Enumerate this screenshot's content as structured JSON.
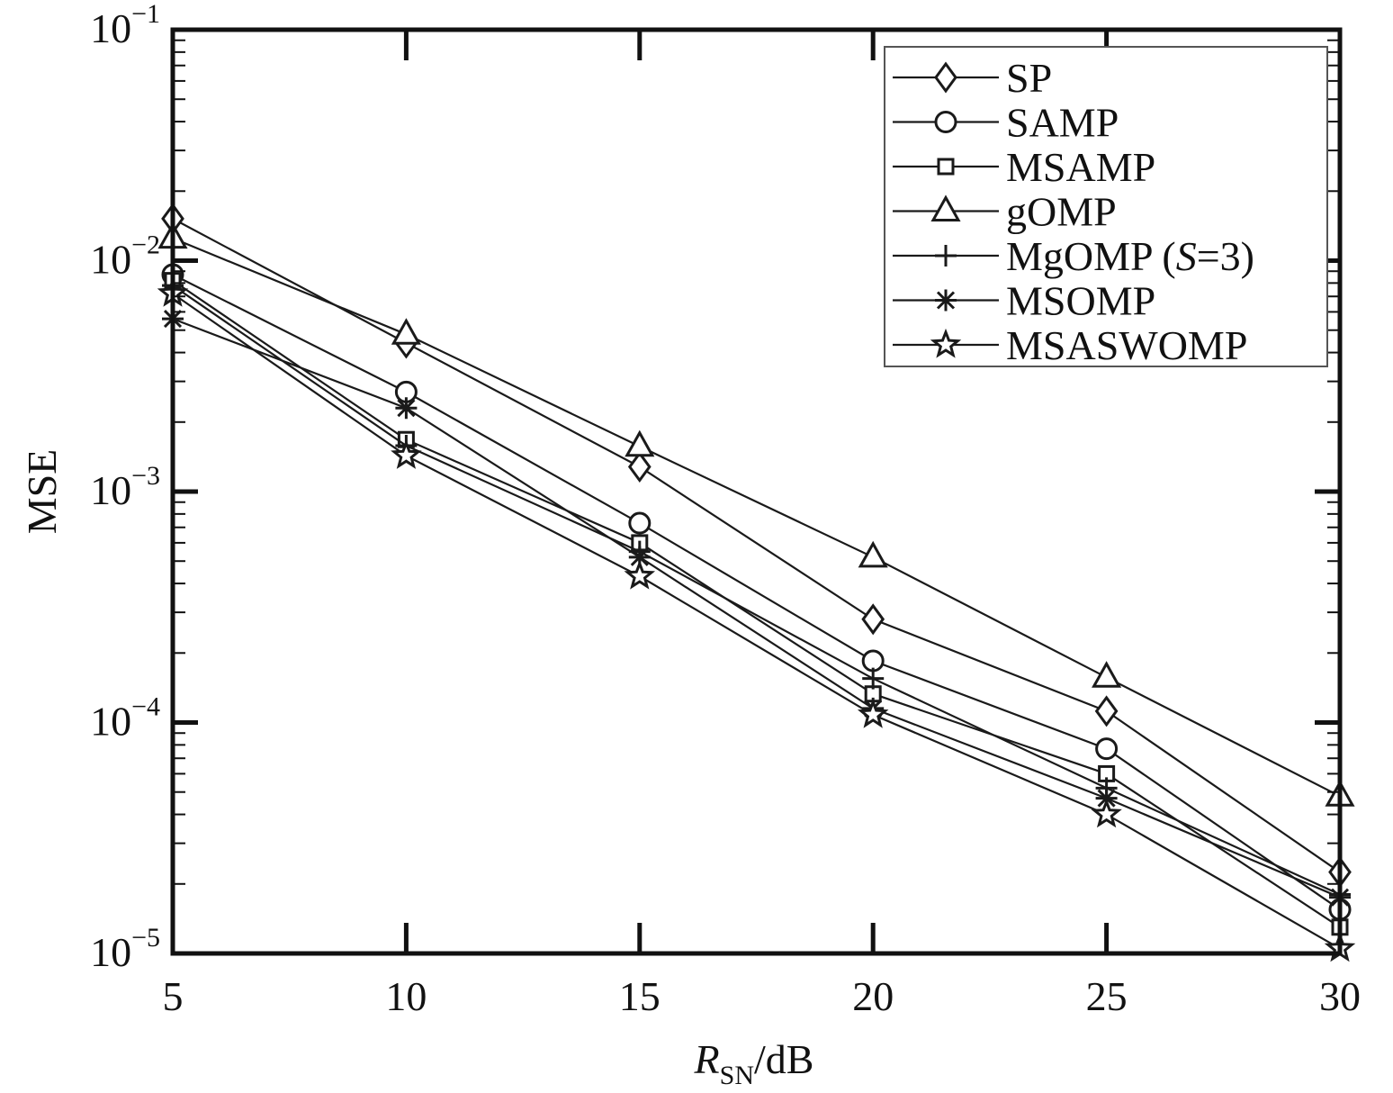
{
  "chart_data": {
    "type": "line",
    "ylabel": "MSE",
    "xlabel_main": "R",
    "xlabel_sub": "SN",
    "xlabel_unit": "/dB",
    "xlim": [
      5,
      30
    ],
    "ylim": [
      1e-05,
      0.1
    ],
    "yscale": "log",
    "x_ticks": [
      {
        "value": 5,
        "label": "5"
      },
      {
        "value": 10,
        "label": "10"
      },
      {
        "value": 15,
        "label": "15"
      },
      {
        "value": 20,
        "label": "20"
      },
      {
        "value": 25,
        "label": "25"
      },
      {
        "value": 30,
        "label": "30"
      }
    ],
    "y_ticks": [
      {
        "value": 1e-05,
        "base": "10",
        "exp": "−5"
      },
      {
        "value": 0.0001,
        "base": "10",
        "exp": "−4"
      },
      {
        "value": 0.001,
        "base": "10",
        "exp": "−3"
      },
      {
        "value": 0.01,
        "base": "10",
        "exp": "−2"
      },
      {
        "value": 0.1,
        "base": "10",
        "exp": "−1"
      }
    ],
    "grid": false,
    "legend_position": "top-right",
    "x": [
      5,
      10,
      15,
      20,
      25,
      30
    ],
    "series": [
      {
        "name": "SP",
        "marker": "diamond",
        "values": [
          0.0152,
          0.0044,
          0.00128,
          0.00028,
          0.000112,
          2.25e-05
        ]
      },
      {
        "name": "SAMP",
        "marker": "circle",
        "values": [
          0.0087,
          0.0027,
          0.00073,
          0.000185,
          7.7e-05,
          1.55e-05
        ]
      },
      {
        "name": "MSAMP",
        "marker": "square",
        "values": [
          0.0082,
          0.00168,
          0.0006,
          0.000133,
          6e-05,
          1.3e-05
        ]
      },
      {
        "name": "gOMP",
        "marker": "triangle",
        "values": [
          0.0125,
          0.0048,
          0.00157,
          0.00052,
          0.000157,
          4.8e-05
        ]
      },
      {
        "name": "MgOMP (S=3)",
        "marker": "plus",
        "values": [
          0.0078,
          0.00158,
          0.00055,
          0.000155,
          5.2e-05,
          1.8e-05
        ]
      },
      {
        "name": "MSOMP",
        "marker": "asterisk",
        "values": [
          0.0056,
          0.0023,
          0.00052,
          0.000115,
          4.7e-05,
          1.75e-05
        ]
      },
      {
        "name": "MSASWOMP",
        "marker": "star",
        "values": [
          0.0072,
          0.00143,
          0.00043,
          0.000108,
          4e-05,
          1.05e-05
        ]
      }
    ],
    "legend": [
      {
        "label": "SP",
        "marker": "diamond"
      },
      {
        "label": "SAMP",
        "marker": "circle"
      },
      {
        "label": "MSAMP",
        "marker": "square"
      },
      {
        "label": "gOMP",
        "marker": "triangle"
      },
      {
        "label_prefix": "MgOMP (",
        "label_italic": "S",
        "label_suffix": "=3)",
        "marker": "plus"
      },
      {
        "label": "MSOMP",
        "marker": "asterisk"
      },
      {
        "label": "MSASWOMP",
        "marker": "star"
      }
    ],
    "colors": {
      "line": "#1a1a1a",
      "axis": "#111111",
      "legend_border": "#555555"
    }
  }
}
